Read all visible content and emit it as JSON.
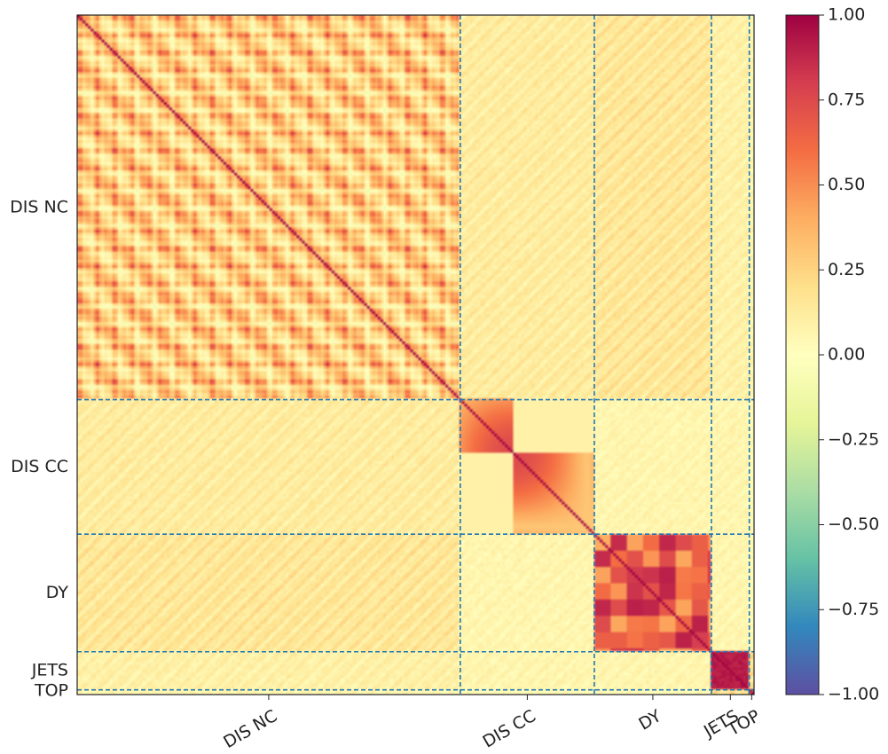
{
  "chart_data": {
    "type": "heatmap",
    "title": "",
    "description_of_values": "correlation matrix",
    "colormap": "Spectral_r",
    "colorscale_stops": [
      "#5e4fa2",
      "#3288bd",
      "#66c2a5",
      "#abdda4",
      "#e6f598",
      "#ffffbf",
      "#fee08b",
      "#fdae61",
      "#f46d43",
      "#d53e4f",
      "#9e0142"
    ],
    "vmin": -1.0,
    "vmax": 1.0,
    "matrix_size": 1000,
    "blocks": [
      {
        "name": "DIS NC",
        "start": 0,
        "end": 566,
        "intra_corr": 0.75,
        "pattern": "dense"
      },
      {
        "name": "DIS CC",
        "start": 566,
        "end": 764,
        "intra_corr": 0.3,
        "pattern": "subblocks"
      },
      {
        "name": "DY",
        "start": 764,
        "end": 937,
        "intra_corr": 0.45,
        "pattern": "blocky"
      },
      {
        "name": "JETS",
        "start": 937,
        "end": 993,
        "intra_corr": 0.95,
        "pattern": "solid"
      },
      {
        "name": "TOP",
        "start": 993,
        "end": 1000,
        "intra_corr": 0.7,
        "pattern": "solid"
      }
    ],
    "cross_block_corr": [
      [
        1.0,
        0.2,
        0.25,
        0.15,
        0.1
      ],
      [
        0.2,
        1.0,
        0.1,
        0.1,
        0.05
      ],
      [
        0.25,
        0.1,
        1.0,
        0.1,
        0.05
      ],
      [
        0.15,
        0.1,
        0.1,
        1.0,
        0.3
      ],
      [
        0.1,
        0.05,
        0.05,
        0.3,
        1.0
      ]
    ],
    "divider_style": "dashed",
    "divider_color": "#1f77b4",
    "y_tick_labels": [
      "DIS NC",
      "DIS CC",
      "DY",
      "JETS",
      "TOP"
    ],
    "x_tick_labels": [
      "DIS NC",
      "DIS CC",
      "DY",
      "JETS",
      "TOP"
    ],
    "colorbar": {
      "ticks": [
        1.0,
        0.75,
        0.5,
        0.25,
        0.0,
        -0.25,
        -0.5,
        -0.75,
        -1.0
      ],
      "tick_labels": [
        "1.00",
        "0.75",
        "0.50",
        "0.25",
        "0.00",
        "−0.25",
        "−0.50",
        "−0.75",
        "−1.00"
      ]
    }
  }
}
